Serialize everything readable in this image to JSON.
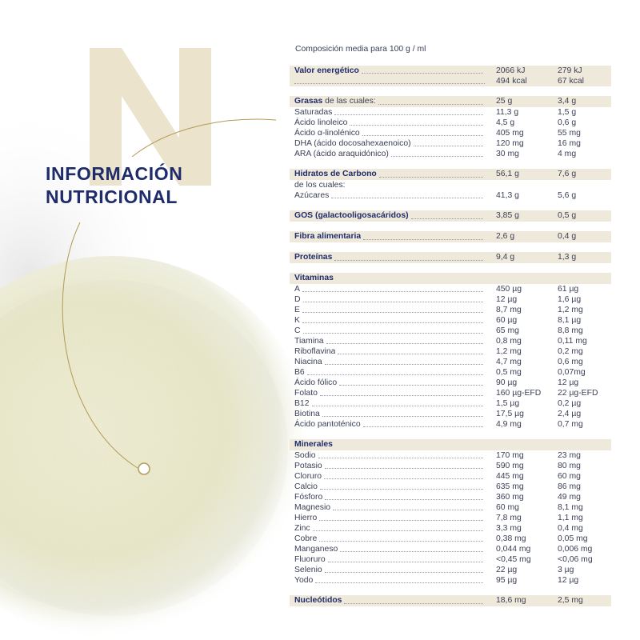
{
  "brand_letter": "N",
  "title_line1": "INFORMACIÓN",
  "title_line2": "NUTRICIONAL",
  "colors": {
    "navy": "#1f2c6b",
    "gold": "#b39a55",
    "band": "#efe9dc",
    "letter": "#ebe3cc"
  },
  "caption": "Composición media para 100 g / ml",
  "energy": {
    "label": "Valor energético",
    "kj": [
      "2066 kJ",
      "279  kJ"
    ],
    "kcal": [
      "494 kcal",
      "67 kcal"
    ]
  },
  "sections": [
    {
      "header": "Grasas",
      "header_suffix": " de las cuales:",
      "v1": "25 g",
      "v2": "3,4 g",
      "rows": [
        [
          "Saturadas",
          "11,3 g",
          "1,5 g"
        ],
        [
          "Ácido linoleico",
          "4,5 g",
          "0,6 g"
        ],
        [
          "Ácido α-linolénico",
          "405 mg",
          "55 mg"
        ],
        [
          "DHA (ácido docosahexaenoico)",
          "120 mg",
          "16 mg"
        ],
        [
          "ARA (ácido araquidónico)",
          "30 mg",
          "4 mg"
        ]
      ]
    },
    {
      "header": "Hidratos de Carbono",
      "v1": "56,1 g",
      "v2": "7,6 g",
      "subnote": "de los cuales:",
      "rows": [
        [
          "Azúcares",
          "41,3 g",
          "5,6 g"
        ]
      ]
    },
    {
      "header": "GOS (galactooligosacáridos)",
      "v1": "3,85 g",
      "v2": "0,5 g",
      "rows": []
    },
    {
      "header": "Fibra alimentaria",
      "v1": "2,6 g",
      "v2": "0,4 g",
      "rows": []
    },
    {
      "header": "Proteínas",
      "v1": "9,4 g",
      "v2": "1,3 g",
      "rows": []
    },
    {
      "header": "Vitaminas",
      "nodots": true,
      "rows": [
        [
          "A",
          "450 µg",
          "61 µg"
        ],
        [
          "D",
          "12 µg",
          "1,6 µg"
        ],
        [
          "E",
          "8,7 mg",
          "1,2 mg"
        ],
        [
          "K",
          "60 µg",
          "8,1 µg"
        ],
        [
          "C",
          "65 mg",
          "8,8 mg"
        ],
        [
          "Tiamina",
          "0,8 mg",
          "0,11 mg"
        ],
        [
          "Riboflavina",
          "1,2 mg",
          "0,2 mg"
        ],
        [
          "Niacina",
          "4,7 mg",
          "0,6 mg"
        ],
        [
          "B6",
          "0,5 mg",
          "0,07mg"
        ],
        [
          "Ácido fólico",
          "90 µg",
          "12 µg"
        ],
        [
          "Folato",
          "160 µg-EFD",
          "22 µg-EFD"
        ],
        [
          "B12",
          "1,5 µg",
          "0,2 µg"
        ],
        [
          "Biotina",
          "17,5  µg",
          "2,4 µg"
        ],
        [
          "Ácido pantoténico",
          "4,9 mg",
          "0,7 mg"
        ]
      ]
    },
    {
      "header": "Minerales",
      "nodots": true,
      "rows": [
        [
          "Sodio",
          "170 mg",
          "23 mg"
        ],
        [
          "Potasio",
          "590 mg",
          "80 mg"
        ],
        [
          "Cloruro",
          "445 mg",
          "60 mg"
        ],
        [
          "Calcio",
          "635 mg",
          "86 mg"
        ],
        [
          "Fósforo",
          "360 mg",
          "49 mg"
        ],
        [
          "Magnesio",
          "60 mg",
          "8,1 mg"
        ],
        [
          "Hierro",
          "7,8 mg",
          "1,1 mg"
        ],
        [
          "Zinc",
          "3,3 mg",
          "0,4 mg"
        ],
        [
          "Cobre",
          "0,38 mg",
          "0,05 mg"
        ],
        [
          "Manganeso",
          "0,044 mg",
          "0,006 mg"
        ],
        [
          "Fluoruro",
          "<0,45 mg",
          "<0,06 mg"
        ],
        [
          "Selenio",
          "22 µg",
          "3 µg"
        ],
        [
          "Yodo",
          "95 µg",
          "12 µg"
        ]
      ]
    },
    {
      "header": "Nucleótidos",
      "v1": "18,6 mg",
      "v2": "2,5 mg",
      "rows": []
    }
  ]
}
